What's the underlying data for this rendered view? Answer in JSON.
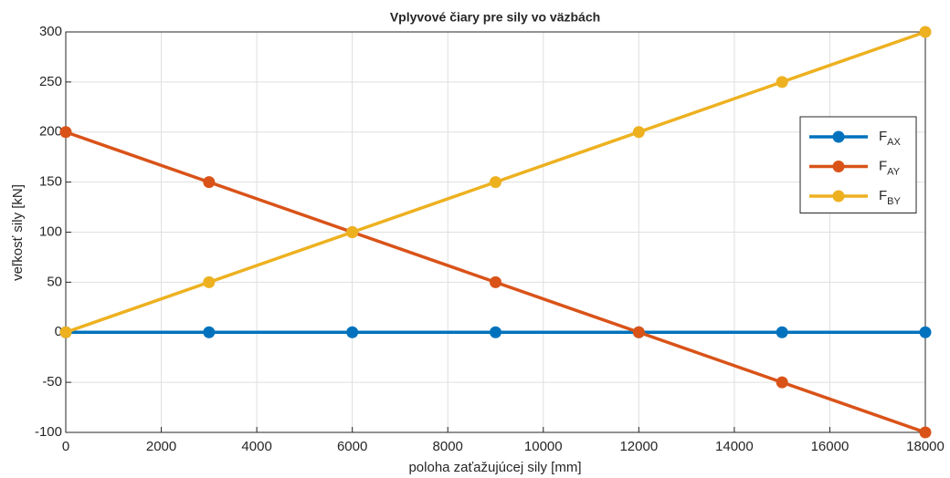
{
  "chart_data": {
    "type": "line",
    "title": "Vplyvové čiary pre sily vo väzbách",
    "xlabel": "poloha zaťažujúcej sily [mm]",
    "ylabel": "veľkosť sily [kN]",
    "x": [
      0,
      3000,
      6000,
      9000,
      12000,
      15000,
      18000
    ],
    "series": [
      {
        "name": "FAX",
        "color": "#0072bd",
        "values": [
          0,
          0,
          0,
          0,
          0,
          0,
          0
        ]
      },
      {
        "name": "FAY",
        "color": "#d95319",
        "values": [
          200,
          150,
          100,
          50,
          0,
          -50,
          -100
        ]
      },
      {
        "name": "FBY",
        "color": "#edb120",
        "values": [
          0,
          50,
          100,
          150,
          200,
          250,
          300
        ]
      }
    ],
    "xlim": [
      0,
      18000
    ],
    "xticks": [
      0,
      2000,
      4000,
      6000,
      8000,
      10000,
      12000,
      14000,
      16000,
      18000
    ],
    "ylim": [
      -100,
      300
    ],
    "yticks": [
      -100,
      -50,
      0,
      50,
      100,
      150,
      200,
      250,
      300
    ],
    "grid": true,
    "legend": "east"
  }
}
